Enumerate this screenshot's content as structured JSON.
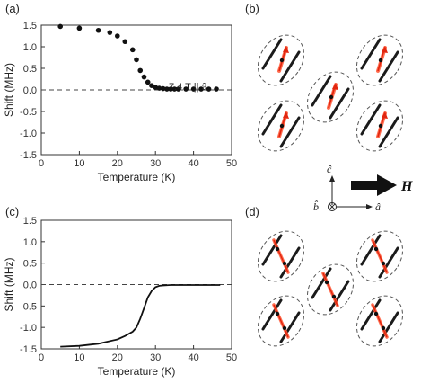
{
  "panels": {
    "a_label": "(a)",
    "b_label": "(b)",
    "c_label": "(c)",
    "d_label": "(d)"
  },
  "annotation_a": "7.4 T || â",
  "field_label": "H",
  "axes_labels": {
    "c": "ĉ",
    "b": "b̂",
    "a": "â"
  },
  "chart_data": [
    {
      "type": "scatter",
      "panel": "(a)",
      "xlabel": "Temperature (K)",
      "ylabel": "Shift (MHz)",
      "xlim": [
        0,
        50
      ],
      "ylim": [
        -1.5,
        1.5
      ],
      "xticks": [
        0,
        10,
        20,
        30,
        40,
        50
      ],
      "yticks": [
        1.5,
        1.0,
        0.5,
        0.0,
        -0.5,
        -1.0,
        -1.5
      ],
      "reference_line": 0.0,
      "x": [
        5,
        10,
        15,
        18,
        20,
        22,
        24,
        25,
        26,
        27,
        28,
        29,
        30,
        31,
        32,
        33,
        34,
        35,
        36,
        38,
        40,
        42,
        44,
        46
      ],
      "y": [
        1.47,
        1.43,
        1.38,
        1.33,
        1.25,
        1.12,
        0.93,
        0.7,
        0.45,
        0.3,
        0.18,
        0.1,
        0.06,
        0.04,
        0.03,
        0.02,
        0.02,
        0.02,
        0.02,
        0.02,
        0.02,
        0.02,
        0.02,
        0.02
      ]
    },
    {
      "type": "line",
      "panel": "(c)",
      "xlabel": "Temperature (K)",
      "ylabel": "Shift (MHz)",
      "xlim": [
        0,
        50
      ],
      "ylim": [
        -1.5,
        1.5
      ],
      "xticks": [
        0,
        10,
        20,
        30,
        40,
        50
      ],
      "yticks": [
        1.5,
        1.0,
        0.5,
        0.0,
        -0.5,
        -1.0,
        -1.5
      ],
      "reference_line": 0.0,
      "x": [
        5,
        10,
        15,
        20,
        22,
        24,
        25,
        26,
        27,
        28,
        29,
        30,
        31,
        32,
        34,
        36,
        40,
        44,
        47
      ],
      "y": [
        -1.45,
        -1.43,
        -1.38,
        -1.28,
        -1.2,
        -1.1,
        -1.0,
        -0.8,
        -0.55,
        -0.3,
        -0.15,
        -0.06,
        -0.03,
        -0.02,
        -0.01,
        -0.01,
        -0.01,
        -0.01,
        -0.01
      ]
    }
  ]
}
